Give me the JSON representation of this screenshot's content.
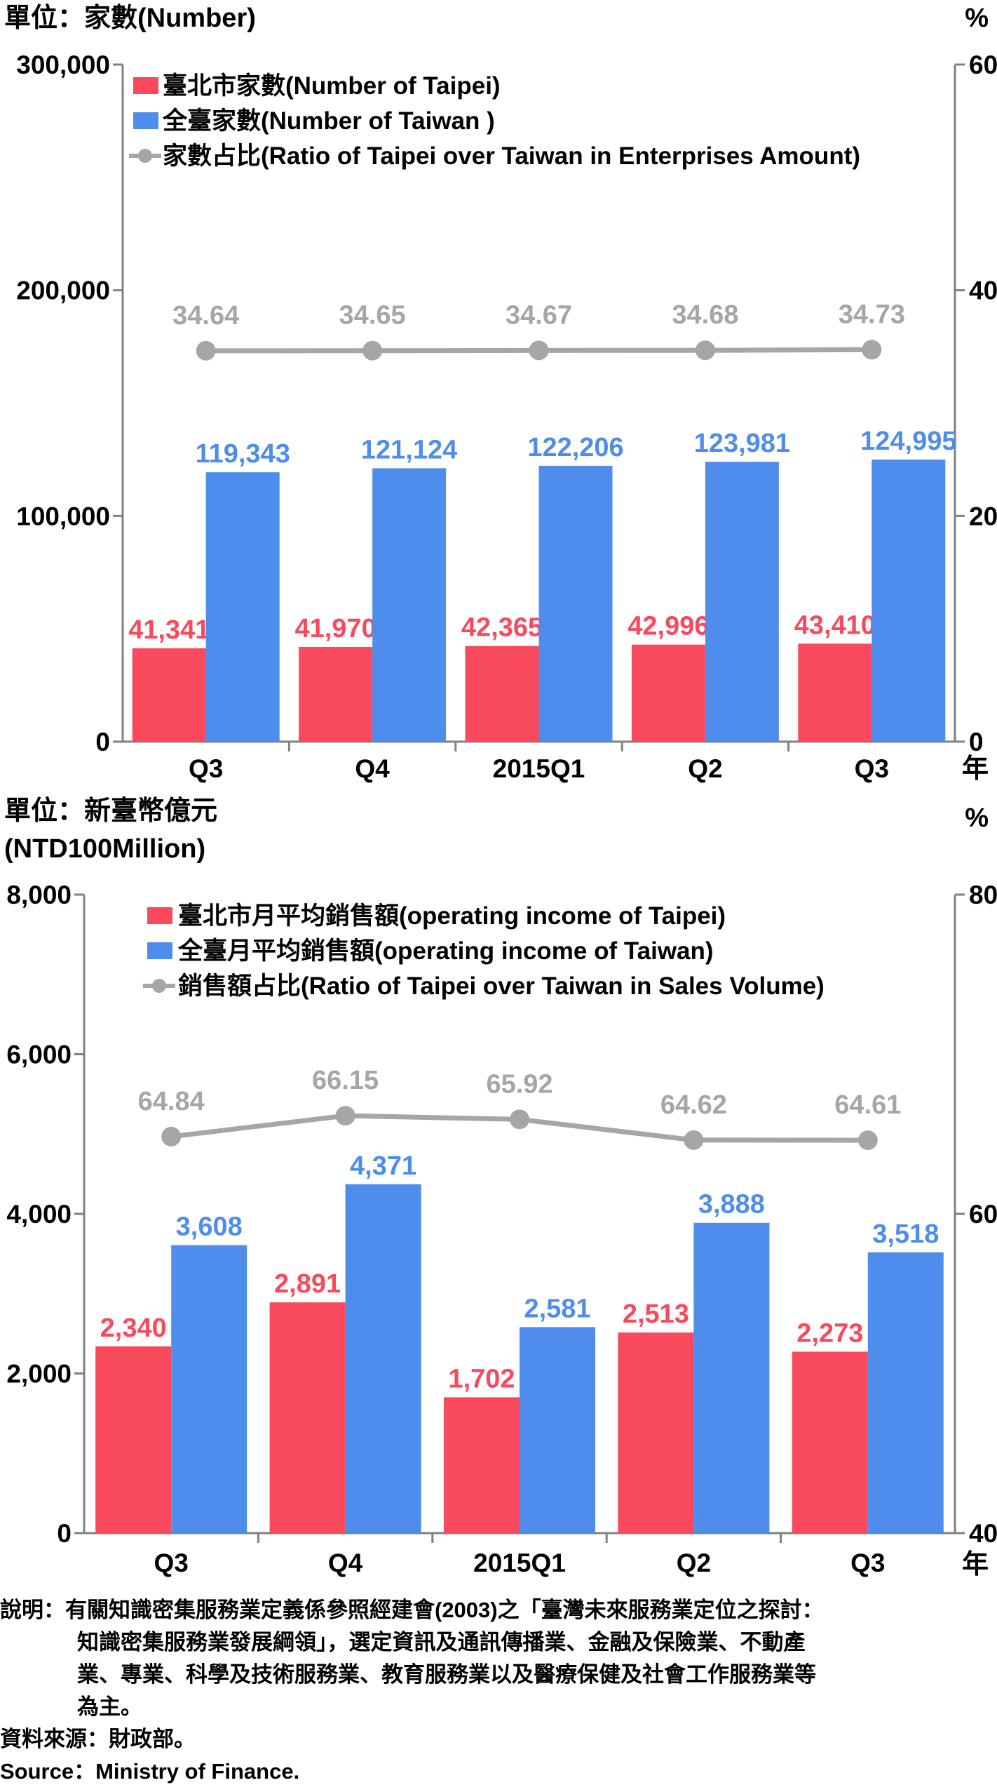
{
  "colors": {
    "taipei": "#f84a5c",
    "taiwan": "#4f8ded",
    "ratio": "#a6a6a6",
    "axis": "#808080"
  },
  "chart_data": [
    {
      "type": "bar",
      "left_unit": "單位：家數(Number)",
      "right_unit": "%",
      "year_label": "年",
      "categories": [
        "Q3",
        "Q4",
        "2015Q1",
        "Q2",
        "Q3"
      ],
      "ylim": [
        0,
        300000
      ],
      "y_ticks": [
        "0",
        "100,000",
        "200,000",
        "300,000"
      ],
      "y2lim": [
        0,
        60
      ],
      "y2_ticks": [
        "0",
        "20",
        "40",
        "60"
      ],
      "series": [
        {
          "name": "臺北市家數(Number of  Taipei)",
          "kind": "bar",
          "axis": "left",
          "values": [
            41341,
            41970,
            42365,
            42996,
            43410
          ],
          "labels": [
            "41,341",
            "41,970",
            "42,365",
            "42,996",
            "43,410"
          ]
        },
        {
          "name": "全臺家數(Number of Taiwan )",
          "kind": "bar",
          "axis": "left",
          "values": [
            119343,
            121124,
            122206,
            123981,
            124995
          ],
          "labels": [
            "119,343",
            "121,124",
            "122,206",
            "123,981",
            "124,995"
          ]
        },
        {
          "name": "家數占比(Ratio of Taipei over Taiwan in Enterprises Amount)",
          "kind": "line",
          "axis": "right",
          "values": [
            34.64,
            34.65,
            34.67,
            34.68,
            34.73
          ],
          "labels": [
            "34.64",
            "34.65",
            "34.67",
            "34.68",
            "34.73"
          ]
        }
      ],
      "legend": "top-left",
      "grid": false
    },
    {
      "type": "bar",
      "left_unit": "單位：新臺幣億元",
      "left_unit_2": "(NTD100Million)",
      "right_unit": "%",
      "year_label": "年",
      "categories": [
        "Q3",
        "Q4",
        "2015Q1",
        "Q2",
        "Q3"
      ],
      "ylim": [
        0,
        8000
      ],
      "y_ticks": [
        "0",
        "2,000",
        "4,000",
        "6,000",
        "8,000"
      ],
      "y2lim": [
        40,
        80
      ],
      "y2_ticks": [
        "40",
        "60",
        "80"
      ],
      "series": [
        {
          "name": "臺北市月平均銷售額(operating income of Taipei)",
          "kind": "bar",
          "axis": "left",
          "values": [
            2340,
            2891,
            1702,
            2513,
            2273
          ],
          "labels": [
            "2,340",
            "2,891",
            "1,702",
            "2,513",
            "2,273"
          ]
        },
        {
          "name": "全臺月平均銷售額(operating income of Taiwan)",
          "kind": "bar",
          "axis": "left",
          "values": [
            3608,
            4371,
            2581,
            3888,
            3518
          ],
          "labels": [
            "3,608",
            "4,371",
            "2,581",
            "3,888",
            "3,518"
          ]
        },
        {
          "name": "銷售額占比(Ratio of Taipei over Taiwan in Sales Volume)",
          "kind": "line",
          "axis": "right",
          "values": [
            64.84,
            66.15,
            65.92,
            64.62,
            64.61
          ],
          "labels": [
            "64.84",
            "66.15",
            "65.92",
            "64.62",
            "64.61"
          ]
        }
      ],
      "legend": "top-left",
      "grid": false
    }
  ],
  "notes": {
    "line1": "說明：有關知識密集服務業定義係參照經建會(2003)之「臺灣未來服務業定位之探討：",
    "line2": "知識密集服務業發展綱領」，選定資訊及通訊傳播業、金融及保險業、不動產",
    "line3": "業、專業、科學及技術服務業、教育服務業以及醫療保健及社會工作服務業等",
    "line4": "為主。",
    "source_zh": "資料來源：財政部。",
    "source_en": "Source：Ministry of Finance."
  }
}
